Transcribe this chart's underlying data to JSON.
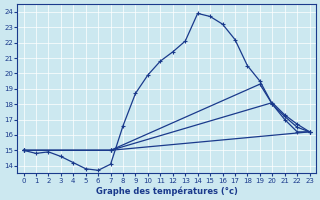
{
  "xlabel": "Graphe des températures (°c)",
  "bg_color": "#cce8f0",
  "line_color": "#1a3a8c",
  "grid_color": "#aad4e0",
  "xlim": [
    -0.5,
    23.5
  ],
  "ylim": [
    13.5,
    24.5
  ],
  "yticks": [
    14,
    15,
    16,
    17,
    18,
    19,
    20,
    21,
    22,
    23,
    24
  ],
  "xticks": [
    0,
    1,
    2,
    3,
    4,
    5,
    6,
    7,
    8,
    9,
    10,
    11,
    12,
    13,
    14,
    15,
    16,
    17,
    18,
    19,
    20,
    21,
    22,
    23
  ],
  "line1_x": [
    0,
    1,
    2,
    3,
    4,
    5,
    6,
    7,
    8,
    9,
    10,
    11,
    12,
    13,
    14,
    15,
    16,
    17,
    18,
    19,
    20,
    21,
    22,
    23
  ],
  "line1_y": [
    15.0,
    14.8,
    14.9,
    14.6,
    14.2,
    13.8,
    13.7,
    14.1,
    16.6,
    18.7,
    19.9,
    20.8,
    21.4,
    22.1,
    23.9,
    23.7,
    23.2,
    22.2,
    20.5,
    19.5,
    18.0,
    17.0,
    16.2,
    16.2
  ],
  "line2_x": [
    0,
    7,
    19,
    20,
    21,
    22,
    23
  ],
  "line2_y": [
    15.0,
    15.0,
    19.3,
    18.0,
    17.2,
    16.5,
    16.2
  ],
  "line3_x": [
    0,
    7,
    20,
    21,
    22,
    23
  ],
  "line3_y": [
    15.0,
    15.0,
    18.1,
    17.3,
    16.7,
    16.2
  ],
  "line4_x": [
    0,
    7,
    23
  ],
  "line4_y": [
    15.0,
    15.0,
    16.2
  ]
}
